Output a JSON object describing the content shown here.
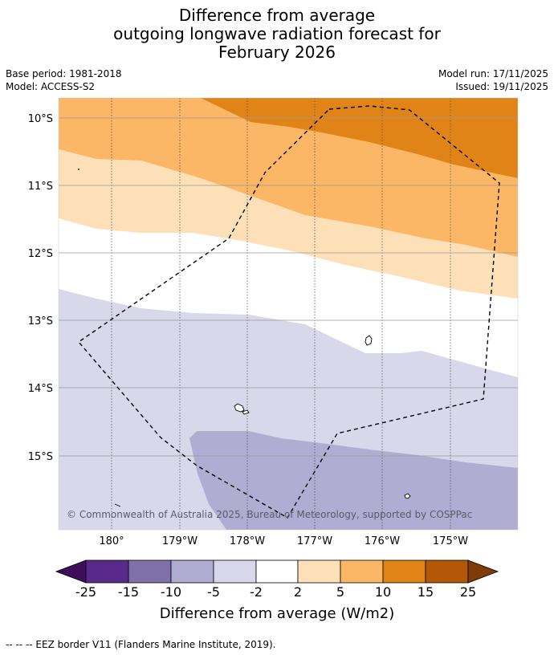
{
  "title": {
    "line1": "Difference from average",
    "line2": "outgoing longwave radiation forecast for",
    "line3": "February 2026"
  },
  "meta": {
    "base_period": "Base period: 1981-2018",
    "model": "Model: ACCESS-S2",
    "model_run": "Model run: 17/11/2025",
    "issued": "Issued: 19/11/2025"
  },
  "axes": {
    "lat_labels": [
      "10°S",
      "11°S",
      "12°S",
      "13°S",
      "14°S",
      "15°S"
    ],
    "lon_labels": [
      "180°",
      "179°W",
      "178°W",
      "177°W",
      "176°W",
      "175°W"
    ]
  },
  "colorbar": {
    "ticks": [
      "-25",
      "-15",
      "-10",
      "-5",
      "-2",
      "2",
      "5",
      "10",
      "15",
      "25"
    ],
    "colors": [
      "#3f0d5c",
      "#5a2a8a",
      "#8070aa",
      "#b1acd2",
      "#d8d8ea",
      "#ffffff",
      "#fde0b7",
      "#fbb765",
      "#e08418",
      "#b35806",
      "#7f3b08"
    ],
    "title": "Difference from average (W/m2)"
  },
  "copyright": "© Commonwealth of Australia 2025, Bureau of Meteorology, supported by COSPPac",
  "footnote": "--  --  -- EEZ border V11 (Flanders Marine Institute, 2019)."
}
